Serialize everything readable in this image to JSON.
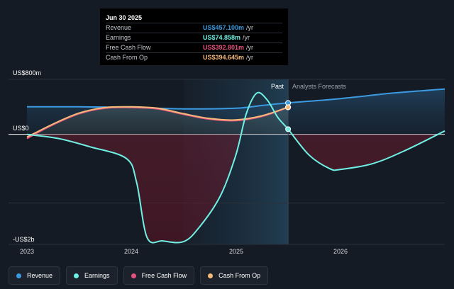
{
  "tooltip": {
    "date": "Jun 30 2025",
    "rows": [
      {
        "name": "Revenue",
        "value": "US$457.100m",
        "unit": "/yr",
        "color": "#3b9ae1"
      },
      {
        "name": "Earnings",
        "value": "US$74.858m",
        "unit": "/yr",
        "color": "#6ff0e4"
      },
      {
        "name": "Free Cash Flow",
        "value": "US$392.801m",
        "unit": "/yr",
        "color": "#e8527f"
      },
      {
        "name": "Cash From Op",
        "value": "US$394.645m",
        "unit": "/yr",
        "color": "#f5b97a"
      }
    ]
  },
  "legend": [
    {
      "label": "Revenue",
      "color": "#3b9ae1"
    },
    {
      "label": "Earnings",
      "color": "#6ff0e4"
    },
    {
      "label": "Free Cash Flow",
      "color": "#e8527f"
    },
    {
      "label": "Cash From Op",
      "color": "#f5b97a"
    }
  ],
  "chart_data": {
    "type": "line",
    "y_tick_labels": [
      "US$800m",
      "US$0",
      "-US$2b"
    ],
    "x_tick_labels": [
      "2023",
      "2024",
      "2025",
      "2026"
    ],
    "region_labels": {
      "past": "Past",
      "forecast": "Analysts Forecasts"
    },
    "xlim": [
      2023.0,
      2027.0
    ],
    "ylim": [
      -1600,
      800
    ],
    "split_x": 2025.5,
    "series": [
      {
        "name": "Revenue",
        "color": "#3b9ae1",
        "x": [
          2023.0,
          2023.5,
          2024.0,
          2024.5,
          2025.0,
          2025.25,
          2025.5,
          2026.0,
          2026.5,
          2027.0
        ],
        "y": [
          400,
          400,
          390,
          370,
          380,
          420,
          457,
          520,
          600,
          660
        ]
      },
      {
        "name": "Earnings",
        "color": "#6ff0e4",
        "x": [
          2023.0,
          2023.3,
          2023.6,
          2023.95,
          2024.05,
          2024.15,
          2024.3,
          2024.5,
          2024.65,
          2024.85,
          2025.0,
          2025.1,
          2025.2,
          2025.3,
          2025.4,
          2025.5,
          2025.7,
          2025.9,
          2026.0,
          2026.3,
          2026.6,
          2027.0
        ],
        "y": [
          0,
          -60,
          -180,
          -350,
          -700,
          -1500,
          -1550,
          -1560,
          -1350,
          -900,
          -300,
          300,
          600,
          500,
          250,
          75,
          -300,
          -500,
          -510,
          -430,
          -250,
          50
        ]
      },
      {
        "name": "Free Cash Flow",
        "color": "#e8527f",
        "x": [
          2023.0,
          2023.25,
          2023.5,
          2023.75,
          2024.0,
          2024.25,
          2024.5,
          2024.75,
          2025.0,
          2025.25,
          2025.5
        ],
        "y": [
          -60,
          140,
          300,
          380,
          390,
          370,
          290,
          220,
          200,
          260,
          393
        ]
      },
      {
        "name": "Cash From Op",
        "color": "#f5b97a",
        "x": [
          2023.0,
          2023.25,
          2023.5,
          2023.75,
          2024.0,
          2024.25,
          2024.5,
          2024.75,
          2025.0,
          2025.25,
          2025.5
        ],
        "y": [
          -40,
          150,
          310,
          390,
          400,
          380,
          300,
          230,
          210,
          270,
          395
        ]
      }
    ]
  }
}
